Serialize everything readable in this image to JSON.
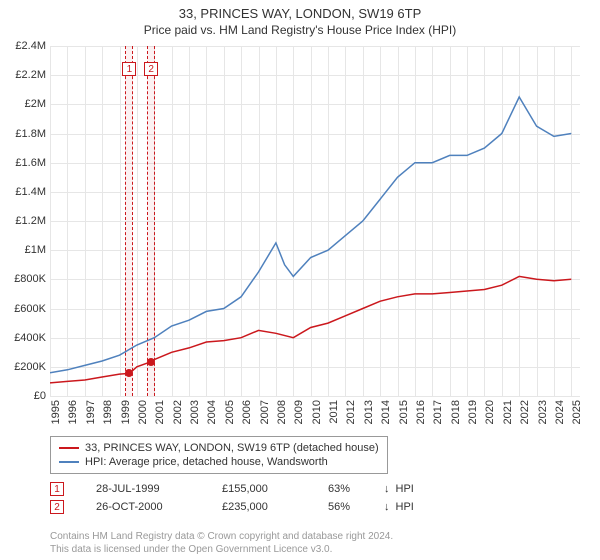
{
  "title": "33, PRINCES WAY, LONDON, SW19 6TP",
  "subtitle": "Price paid vs. HM Land Registry's House Price Index (HPI)",
  "chart": {
    "type": "line",
    "background_color": "#ffffff",
    "grid_color": "#e6e6e6",
    "axis_color": "#cccccc",
    "label_color": "#333333",
    "label_fontsize": 11,
    "x": {
      "min": 1995,
      "max": 2025.5,
      "ticks": [
        1995,
        1996,
        1997,
        1998,
        1999,
        2000,
        2001,
        2002,
        2003,
        2004,
        2005,
        2006,
        2007,
        2008,
        2009,
        2010,
        2011,
        2012,
        2013,
        2014,
        2015,
        2016,
        2017,
        2018,
        2019,
        2020,
        2021,
        2022,
        2023,
        2024,
        2025
      ]
    },
    "y": {
      "min": 0,
      "max": 2400000,
      "tick_step": 200000,
      "tick_labels": [
        "£0",
        "£200K",
        "£400K",
        "£600K",
        "£800K",
        "£1M",
        "£1.2M",
        "£1.4M",
        "£1.6M",
        "£1.8M",
        "£2M",
        "£2.2M",
        "£2.4M"
      ]
    },
    "series": [
      {
        "id": "price_paid",
        "label": "33, PRINCES WAY, LONDON, SW19 6TP (detached house)",
        "color": "#cb181d",
        "line_width": 1.5,
        "data": [
          [
            1995,
            90000
          ],
          [
            1996,
            100000
          ],
          [
            1997,
            110000
          ],
          [
            1998,
            130000
          ],
          [
            1999,
            150000
          ],
          [
            1999.57,
            155000
          ],
          [
            2000,
            200000
          ],
          [
            2000.82,
            235000
          ],
          [
            2001,
            250000
          ],
          [
            2002,
            300000
          ],
          [
            2003,
            330000
          ],
          [
            2004,
            370000
          ],
          [
            2005,
            380000
          ],
          [
            2006,
            400000
          ],
          [
            2007,
            450000
          ],
          [
            2008,
            430000
          ],
          [
            2009,
            400000
          ],
          [
            2010,
            470000
          ],
          [
            2011,
            500000
          ],
          [
            2012,
            550000
          ],
          [
            2013,
            600000
          ],
          [
            2014,
            650000
          ],
          [
            2015,
            680000
          ],
          [
            2016,
            700000
          ],
          [
            2017,
            700000
          ],
          [
            2018,
            710000
          ],
          [
            2019,
            720000
          ],
          [
            2020,
            730000
          ],
          [
            2021,
            760000
          ],
          [
            2022,
            820000
          ],
          [
            2023,
            800000
          ],
          [
            2024,
            790000
          ],
          [
            2025,
            800000
          ]
        ]
      },
      {
        "id": "hpi",
        "label": "HPI: Average price, detached house, Wandsworth",
        "color": "#4f81bd",
        "line_width": 1.5,
        "data": [
          [
            1995,
            160000
          ],
          [
            1996,
            180000
          ],
          [
            1997,
            210000
          ],
          [
            1998,
            240000
          ],
          [
            1999,
            280000
          ],
          [
            2000,
            350000
          ],
          [
            2001,
            400000
          ],
          [
            2002,
            480000
          ],
          [
            2003,
            520000
          ],
          [
            2004,
            580000
          ],
          [
            2005,
            600000
          ],
          [
            2006,
            680000
          ],
          [
            2007,
            850000
          ],
          [
            2008,
            1050000
          ],
          [
            2008.5,
            900000
          ],
          [
            2009,
            820000
          ],
          [
            2010,
            950000
          ],
          [
            2011,
            1000000
          ],
          [
            2012,
            1100000
          ],
          [
            2013,
            1200000
          ],
          [
            2014,
            1350000
          ],
          [
            2015,
            1500000
          ],
          [
            2016,
            1600000
          ],
          [
            2017,
            1600000
          ],
          [
            2018,
            1650000
          ],
          [
            2019,
            1650000
          ],
          [
            2020,
            1700000
          ],
          [
            2021,
            1800000
          ],
          [
            2022,
            2050000
          ],
          [
            2023,
            1850000
          ],
          [
            2024,
            1780000
          ],
          [
            2025,
            1800000
          ]
        ]
      }
    ],
    "sale_markers": [
      {
        "n": "1",
        "x": 1999.57,
        "price": 155000,
        "color": "#cb181d"
      },
      {
        "n": "2",
        "x": 2000.82,
        "price": 235000,
        "color": "#cb181d"
      }
    ]
  },
  "legend": {
    "border_color": "#999999",
    "items": [
      {
        "color": "#cb181d",
        "label": "33, PRINCES WAY, LONDON, SW19 6TP (detached house)"
      },
      {
        "color": "#4f81bd",
        "label": "HPI: Average price, detached house, Wandsworth"
      }
    ]
  },
  "sales": [
    {
      "n": "1",
      "color": "#cb181d",
      "date": "28-JUL-1999",
      "price": "£155,000",
      "pct": "63%",
      "dir": "↓",
      "vs": "HPI"
    },
    {
      "n": "2",
      "color": "#cb181d",
      "date": "26-OCT-2000",
      "price": "£235,000",
      "pct": "56%",
      "dir": "↓",
      "vs": "HPI"
    }
  ],
  "license": {
    "line1": "Contains HM Land Registry data © Crown copyright and database right 2024.",
    "line2": "This data is licensed under the Open Government Licence v3.0."
  }
}
